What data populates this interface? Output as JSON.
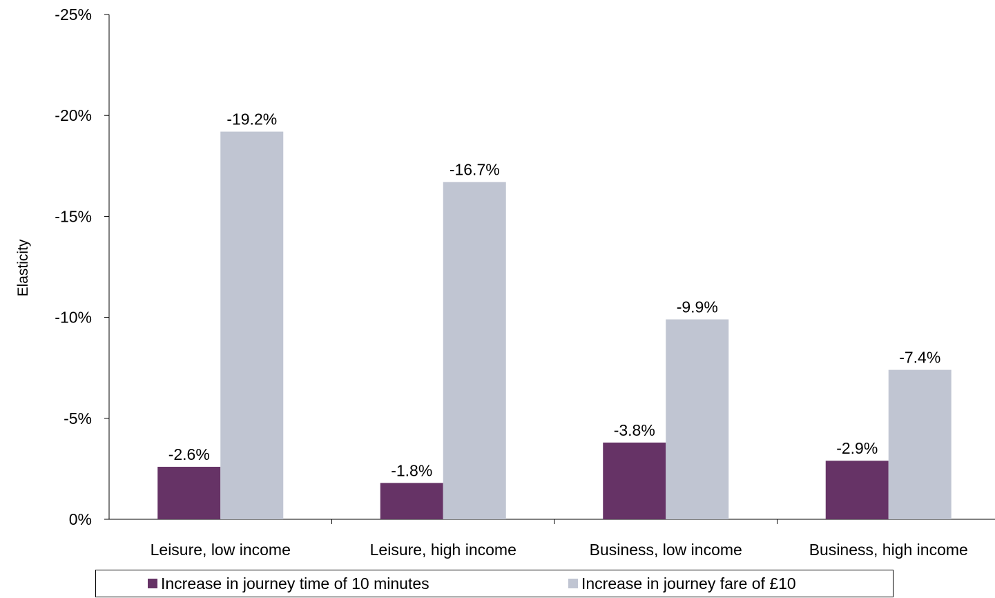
{
  "chart_data": {
    "type": "bar",
    "title": "",
    "xlabel": "",
    "ylabel": "Elasticity",
    "categories": [
      "Leisure, low income",
      "Leisure, high income",
      "Business, low income",
      "Business, high income"
    ],
    "series": [
      {
        "name": "Increase in journey time of 10 minutes",
        "color": "#663366",
        "values": [
          -2.6,
          -1.8,
          -3.8,
          -2.9
        ],
        "labels": [
          "-2.6%",
          "-1.8%",
          "-3.8%",
          "-2.9%"
        ]
      },
      {
        "name": "Increase in journey fare of £10",
        "color": "#C0C5D2",
        "values": [
          -19.2,
          -16.7,
          -9.9,
          -7.4
        ],
        "labels": [
          "-19.2%",
          "-16.7%",
          "-9.9%",
          "-7.4%"
        ]
      }
    ],
    "ylim": [
      0,
      -25
    ],
    "y_axis_reversed": true,
    "yticks": [
      0,
      -5,
      -10,
      -15,
      -20,
      -25
    ],
    "ytick_labels": [
      "0%",
      "-5%",
      "-10%",
      "-15%",
      "-20%",
      "-25%"
    ],
    "grid": false,
    "legend_position": "bottom"
  },
  "legend": {
    "items": [
      {
        "label": "Increase in journey time of 10 minutes",
        "color": "#663366"
      },
      {
        "label": "Increase in journey fare of £10",
        "color": "#C0C5D2"
      }
    ]
  }
}
